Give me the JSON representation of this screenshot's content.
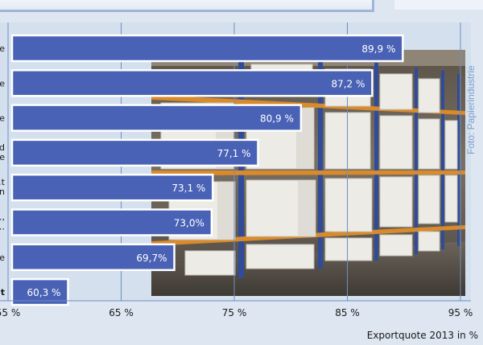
{
  "photo_credit": "Foto: Papierindustrie",
  "colors": {
    "bar": "#4a62b6",
    "bar_border": "#ffffff",
    "bar_label": "#ffffff",
    "plot_bg": "#d4e0ee",
    "gridline": "#6f8ec2",
    "panel_top": "#e6edf6"
  },
  "chart_data": {
    "type": "bar",
    "orientation": "horizontal",
    "categories": [
      "…e",
      "…e",
      "…e",
      "…d / …e",
      "…t / …n",
      "…, / …",
      "…e",
      "…t"
    ],
    "values": [
      89.9,
      87.2,
      80.9,
      77.1,
      73.1,
      73.0,
      69.7,
      60.3
    ],
    "value_labels": [
      "89,9 %",
      "87,2 %",
      "80,9 %",
      "77,1 %",
      "73,1 %",
      "73,0%",
      "69,7%",
      "60,3 %"
    ],
    "xlim": [
      55,
      95
    ],
    "x_ticks": [
      55,
      65,
      75,
      85,
      95
    ],
    "x_tick_labels": [
      "55 %",
      "65 %",
      "75 %",
      "85 %",
      "95 %"
    ],
    "xlabel": "Exportquote 2013 in %",
    "title": "",
    "grid": true
  }
}
